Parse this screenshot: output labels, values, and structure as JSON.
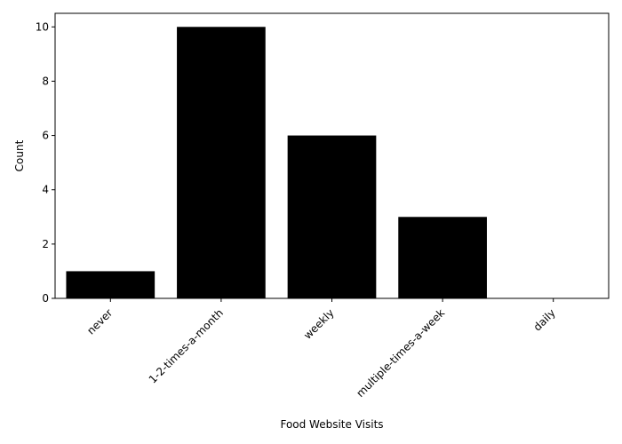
{
  "chart_data": {
    "type": "bar",
    "categories": [
      "never",
      "1-2-times-a-month",
      "weekly",
      "multiple-times-a-week",
      "daily"
    ],
    "values": [
      1,
      10,
      6,
      3,
      0
    ],
    "xlabel": "Food Website Visits",
    "ylabel": "Count",
    "ylim": [
      0,
      10.5
    ],
    "yticks": [
      0,
      2,
      4,
      6,
      8,
      10
    ],
    "bar_color": "#000000",
    "grid": false,
    "x_tick_rotation": 45
  }
}
